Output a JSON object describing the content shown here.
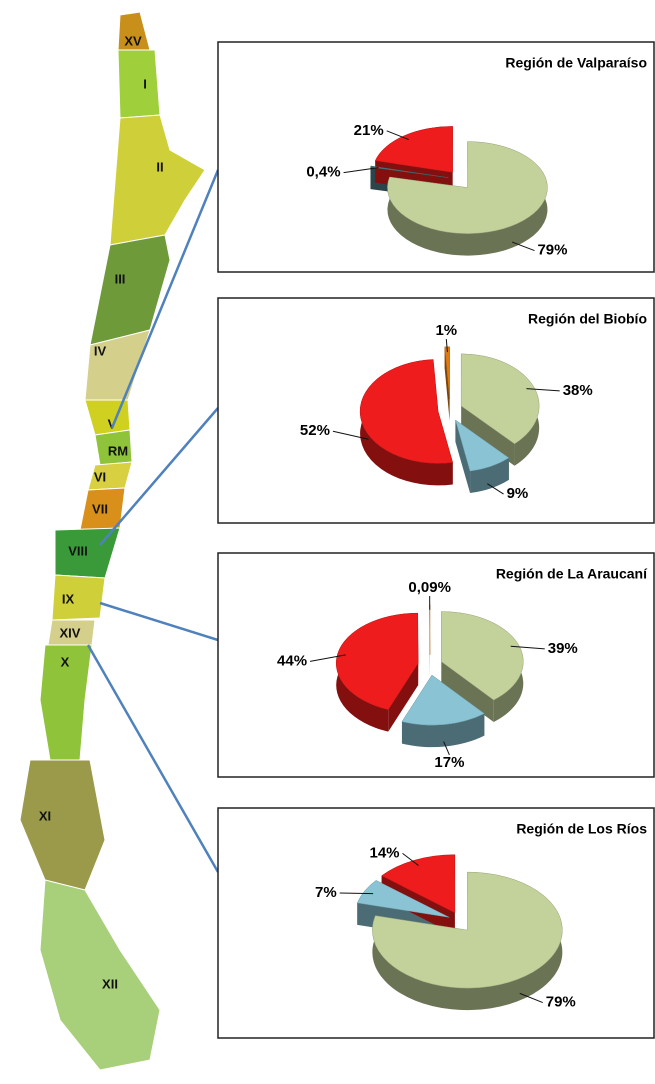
{
  "map": {
    "regions": [
      "XV",
      "I",
      "II",
      "III",
      "IV",
      "V",
      "RM",
      "VI",
      "VII",
      "VIII",
      "IX",
      "XIV",
      "X",
      "XI",
      "XII"
    ]
  },
  "chart_data": [
    {
      "type": "pie",
      "title": "Región de Valparaíso",
      "values": [
        79,
        0.4,
        21
      ],
      "value_labels": [
        "79%",
        "0,4%",
        "21%"
      ],
      "colors": [
        "#c3d19b",
        "#4e7e86",
        "#ee1c1c"
      ]
    },
    {
      "type": "pie",
      "title": "Región del Biobío",
      "values": [
        38,
        9,
        52,
        1
      ],
      "value_labels": [
        "38%",
        "9%",
        "52%",
        "1%"
      ],
      "colors": [
        "#c3d19b",
        "#8ac4d4",
        "#ee1c1c",
        "#e07a10"
      ]
    },
    {
      "type": "pie",
      "title": "Región de La Araucaní",
      "values": [
        39,
        17,
        44,
        0.09
      ],
      "value_labels": [
        "39%",
        "17%",
        "44%",
        "0,09%"
      ],
      "colors": [
        "#c3d19b",
        "#8ac4d4",
        "#ee1c1c",
        "#e07a10"
      ]
    },
    {
      "type": "pie",
      "title": "Región de Los Ríos",
      "values": [
        79,
        7,
        14
      ],
      "value_labels": [
        "79%",
        "7%",
        "14%"
      ],
      "colors": [
        "#c3d19b",
        "#8ac4d4",
        "#ee1c1c"
      ]
    }
  ]
}
